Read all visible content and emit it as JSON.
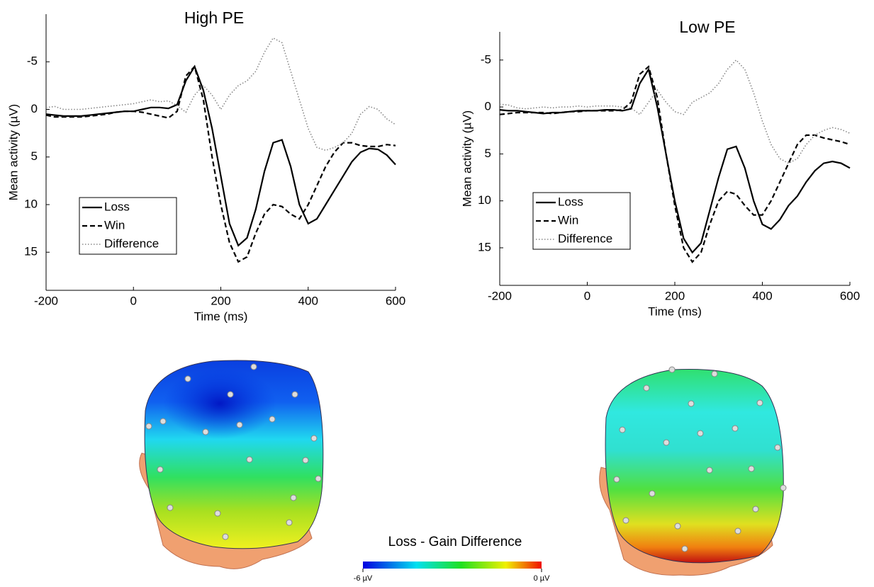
{
  "chart_data": [
    {
      "type": "line",
      "title": "High PE",
      "x_label": "Time (ms)",
      "y_label": "Mean activity (µV)",
      "x": [
        -200,
        -180,
        -160,
        -140,
        -120,
        -100,
        -80,
        -60,
        -40,
        -20,
        0,
        20,
        40,
        60,
        80,
        100,
        120,
        140,
        160,
        180,
        200,
        220,
        240,
        260,
        280,
        300,
        320,
        340,
        360,
        380,
        400,
        420,
        440,
        460,
        480,
        500,
        520,
        540,
        560,
        580,
        600
      ],
      "series": [
        {
          "name": "Loss",
          "color": "#000000",
          "dash": "solid",
          "values": [
            0.5,
            0.6,
            0.7,
            0.7,
            0.7,
            0.6,
            0.5,
            0.4,
            0.3,
            0.2,
            0.2,
            0.0,
            -0.2,
            -0.2,
            -0.1,
            -0.5,
            -3,
            -4.5,
            -2,
            2,
            7,
            12,
            14.3,
            13.5,
            10.5,
            6.5,
            3.5,
            3.2,
            6,
            10,
            12,
            11.5,
            10,
            8.5,
            7,
            5.5,
            4.5,
            4.1,
            4.2,
            4.8,
            5.8
          ]
        },
        {
          "name": "Win",
          "color": "#000000",
          "dash": "dashed",
          "values": [
            0.6,
            0.8,
            0.8,
            0.8,
            0.8,
            0.7,
            0.6,
            0.5,
            0.3,
            0.2,
            0.2,
            0.3,
            0.5,
            0.7,
            0.9,
            0.2,
            -3.5,
            -4.5,
            -1,
            5,
            10,
            14,
            16,
            15.5,
            13,
            11,
            10,
            10.2,
            11,
            11.5,
            10,
            8,
            6,
            4.5,
            3.5,
            3.5,
            3.8,
            3.9,
            3.9,
            3.7,
            3.8
          ]
        },
        {
          "name": "Difference",
          "color": "#888888",
          "dash": "dotted",
          "values": [
            -0.2,
            -0.3,
            0,
            0,
            0,
            -0.1,
            -0.2,
            -0.3,
            -0.4,
            -0.5,
            -0.6,
            -0.8,
            -1,
            -0.8,
            -0.9,
            -0.4,
            0.3,
            -1.5,
            -2.5,
            -1.5,
            0,
            -1.5,
            -2.5,
            -3,
            -4,
            -6,
            -7.5,
            -7,
            -4,
            -1,
            2,
            4,
            4.3,
            4,
            3.5,
            2.5,
            0.5,
            -0.3,
            0,
            1,
            1.6
          ]
        }
      ],
      "xlim": [
        -200,
        600
      ],
      "xticks": [
        -200,
        0,
        200,
        400,
        600
      ],
      "ylim": [
        -10,
        19
      ],
      "yticks": [
        -5,
        0,
        5,
        10,
        15
      ],
      "y_reversed": true,
      "grid": false,
      "legend": "lower left"
    },
    {
      "type": "line",
      "title": "Low PE",
      "x_label": "Time (ms)",
      "y_label": "Mean activity (µV)",
      "x": [
        -200,
        -180,
        -160,
        -140,
        -120,
        -100,
        -80,
        -60,
        -40,
        -20,
        0,
        20,
        40,
        60,
        80,
        100,
        120,
        140,
        160,
        180,
        200,
        220,
        240,
        260,
        280,
        300,
        320,
        340,
        360,
        380,
        400,
        420,
        440,
        460,
        480,
        500,
        520,
        540,
        560,
        580,
        600
      ],
      "series": [
        {
          "name": "Loss",
          "color": "#000000",
          "dash": "solid",
          "values": [
            0.3,
            0.4,
            0.4,
            0.5,
            0.6,
            0.7,
            0.6,
            0.6,
            0.5,
            0.4,
            0.4,
            0.4,
            0.3,
            0.3,
            0.4,
            0.2,
            -2.5,
            -4,
            0,
            5,
            10,
            14,
            15.5,
            14.5,
            11,
            7.5,
            4.5,
            4.2,
            6.5,
            10,
            12.5,
            13,
            12,
            10.5,
            9.5,
            8,
            6.8,
            6,
            5.8,
            6,
            6.5
          ]
        },
        {
          "name": "Win",
          "color": "#000000",
          "dash": "dashed",
          "values": [
            0.8,
            0.7,
            0.6,
            0.6,
            0.6,
            0.6,
            0.7,
            0.6,
            0.5,
            0.5,
            0.4,
            0.4,
            0.4,
            0.4,
            0.3,
            -0.5,
            -3.5,
            -4.3,
            -1,
            5,
            10.5,
            15,
            16.5,
            15.5,
            12.5,
            10,
            9,
            9.3,
            10.5,
            11.5,
            11.5,
            10,
            8,
            6,
            4,
            3,
            3,
            3.3,
            3.5,
            3.7,
            4
          ]
        },
        {
          "name": "Difference",
          "color": "#888888",
          "dash": "dotted",
          "values": [
            -0.3,
            -0.2,
            0.1,
            0.2,
            0.1,
            0,
            0.1,
            0,
            0,
            -0.1,
            0,
            -0.1,
            -0.1,
            -0.1,
            0,
            0.1,
            0.8,
            -0.5,
            -1.8,
            -0.5,
            0.5,
            0.8,
            -0.5,
            -1,
            -1.5,
            -2.5,
            -4,
            -5,
            -4,
            -1.5,
            1.5,
            4,
            5.5,
            6,
            5.5,
            4,
            3,
            2.5,
            2.2,
            2.4,
            2.8
          ]
        }
      ],
      "xlim": [
        -200,
        600
      ],
      "xticks": [
        -200,
        0,
        200,
        400,
        600
      ],
      "ylim": [
        -8,
        19
      ],
      "yticks": [
        -5,
        0,
        5,
        10,
        15
      ],
      "y_reversed": true,
      "grid": false,
      "legend": "lower left"
    }
  ],
  "colorbar": {
    "title": "Loss - Gain Difference",
    "ticks": [
      {
        "value": -6,
        "label": "-6 µV"
      },
      {
        "value": 0,
        "label": "0 µV"
      }
    ]
  }
}
